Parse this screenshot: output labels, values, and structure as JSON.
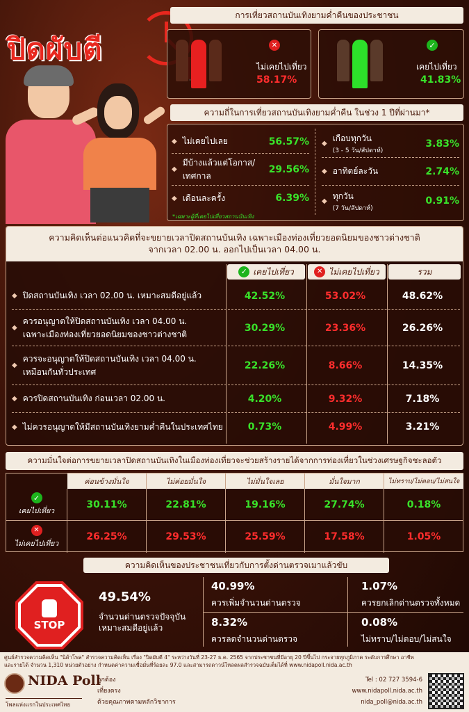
{
  "headline": "ปิดผับตี",
  "headline_num": "4",
  "top": {
    "title": "การเที่ยวสถานบันเทิงยามค่ำคืนของประชาชน",
    "never": {
      "label": "ไม่เคยไปเที่ยว",
      "value": "58.17%"
    },
    "ever": {
      "label": "เคยไปเที่ยว",
      "value": "41.83%"
    }
  },
  "freq": {
    "title": "ความถี่ในการเที่ยวสถานบันเทิงยามค่ำคืน ในช่วง 1 ปีที่ผ่านมา*",
    "left": [
      {
        "label": "ไม่เคยไปเลย",
        "value": "56.57%"
      },
      {
        "label": "มีบ้างแล้วแต่โอกาส/",
        "label2": "เทศกาล",
        "value": "29.56%"
      },
      {
        "label": "เดือนละครั้ง",
        "value": "6.39%"
      }
    ],
    "right": [
      {
        "label": "เกือบทุกวัน",
        "sub": "(3 - 5 วัน/สัปดาห์)",
        "value": "3.83%"
      },
      {
        "label": "อาทิตย์ละวัน",
        "value": "2.74%"
      },
      {
        "label": "ทุกวัน",
        "sub": "(7 วัน/สัปดาห์)",
        "value": "0.91%"
      }
    ],
    "note": "*เฉพาะผู้ที่เคยไปเที่ยวสถานบันเทิง"
  },
  "opinion": {
    "title1": "ความคิดเห็นต่อแนวคิดที่จะขยายเวลาปิดสถานบันเทิง เฉพาะเมืองท่องเที่ยวยอดนิยมของชาวต่างชาติ",
    "title2": "จากเวลา 02.00 น. ออกไปเป็นเวลา 04.00 น.",
    "cols": [
      "เคยไปเที่ยว",
      "ไม่เคยไปเที่ยว",
      "รวม"
    ],
    "rows": [
      {
        "l1": "ปิดสถานบันเทิง เวลา 02.00 น. เหมาะสมดีอยู่แล้ว",
        "l2": "",
        "v": [
          "42.52%",
          "53.02%",
          "48.62%"
        ]
      },
      {
        "l1": "ควรอนุญาตให้ปิดสถานบันเทิง เวลา 04.00 น.",
        "l2": "เฉพาะเมืองท่องเที่ยวยอดนิยมของชาวต่างชาติ",
        "v": [
          "30.29%",
          "23.36%",
          "26.26%"
        ]
      },
      {
        "l1": "ควรจะอนุญาตให้ปิดสถานบันเทิง เวลา 04.00 น.",
        "l2": "เหมือนกันทั่วประเทศ",
        "v": [
          "22.26%",
          "8.66%",
          "14.35%"
        ]
      },
      {
        "l1": "ควรปิดสถานบันเทิง ก่อนเวลา 02.00 น.",
        "l2": "",
        "v": [
          "4.20%",
          "9.32%",
          "7.18%"
        ]
      },
      {
        "l1": "ไม่ควรอนุญาตให้มีสถานบันเทิงยามค่ำคืนในประเทศไทย",
        "l2": "",
        "v": [
          "0.73%",
          "4.99%",
          "3.21%"
        ]
      }
    ]
  },
  "confidence": {
    "title": "ความมั่นใจต่อการขยายเวลาปิดสถานบันเทิงในเมืองท่องเที่ยวจะช่วยสร้างรายได้จากการท่องเที่ยวในช่วงเศรษฐกิจชะลอตัว",
    "cols": [
      "ค่อนข้างมั่นใจ",
      "ไม่ค่อยมั่นใจ",
      "ไม่มั่นใจเลย",
      "มั่นใจมาก",
      "ไม่ทราบ/ไม่ตอบ/ไม่สนใจ"
    ],
    "rows": [
      {
        "label": "เคยไปเที่ยว",
        "v": [
          "30.11%",
          "22.81%",
          "19.16%",
          "27.74%",
          "0.18%"
        ]
      },
      {
        "label": "ไม่เคยไปเที่ยว",
        "v": [
          "26.25%",
          "29.53%",
          "25.59%",
          "17.58%",
          "1.05%"
        ]
      }
    ]
  },
  "checkpoint": {
    "title": "ความคิดเห็นของประชาชนเที่ยวกับการตั้งด่านตรวจเมาแล้วขับ",
    "stop": "STOP",
    "main_value": "49.54%",
    "main_l1": "จำนวนด่านตรวจปัจจุบัน",
    "main_l2": "เหมาะสมดีอยู่แล้ว",
    "items": [
      {
        "value": "40.99%",
        "label": "ควรเพิ่มจำนวนด่านตรวจ"
      },
      {
        "value": "1.07%",
        "label": "ควรยกเลิกด่านตรวจทั้งหมด"
      },
      {
        "value": "8.32%",
        "label": "ควรลดจำนวนด่านตรวจ"
      },
      {
        "value": "0.08%",
        "label": "ไม่ทราบ/ไม่ตอบ/ไม่สนใจ"
      }
    ]
  },
  "footer": {
    "note1": "ศูนย์สำรวจความคิดเห็น \"นิด้าโพล\" สำรวจความคิดเห็น เรื่อง \"ปิดผับตี 4\" ระหว่างวันที่ 23-27 ธ.ค. 2565 จากประชาชนที่มีอายุ 20 ปีขึ้นไป กระจายทุกภูมิภาค ระดับการศึกษา อาชีพ",
    "note2": "และรายได้ จำนวน 1,310 หน่วยตัวอย่าง กำหนดค่าความเชื่อมั่นที่ร้อยละ 97.0 และสามารถดาวน์โหลดผลสำรวจฉบับเต็มได้ที่ www.nidapoll.nida.ac.th",
    "brand": "NIDA Poll",
    "brand_sub": "โพลแห่งแรกในประเทศไทย",
    "tags": [
      "ถูกต้อง",
      "เที่ยงตรง",
      "ด้วยคุณภาพตามหลักวิชาการ"
    ],
    "tel": "Tel : 02 727 3594-6",
    "web": "www.nidapoll.nida.ac.th",
    "email": "nida_poll@nida.ac.th"
  },
  "colors": {
    "green": "#39e22a",
    "red": "#ff2d2d",
    "header_bg": "#f3ebe0"
  }
}
